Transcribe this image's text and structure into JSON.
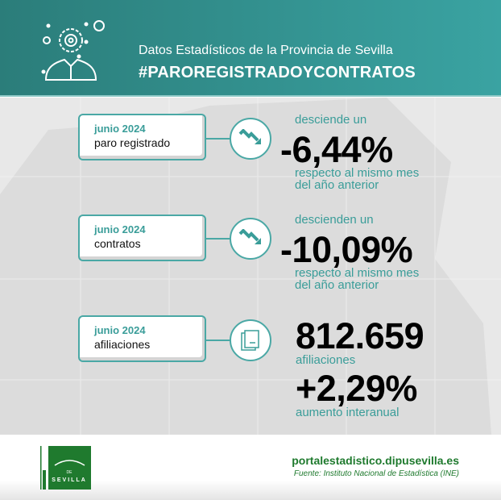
{
  "header": {
    "subtitle": "Datos Estadísticos de la Provincia de Sevilla",
    "title": "#PAROREGISTRADOYCONTRATOS",
    "icon": "person-gear-icon"
  },
  "colors": {
    "teal": "#3a9d99",
    "header_start": "#2b7d7a",
    "header_end": "#3aa3a2",
    "footer_green": "#1f7a2e"
  },
  "cards": [
    {
      "date": "junio 2024",
      "label": "paro registrado",
      "icon": "trend-down-icon",
      "pre": "desciende un",
      "value": "-6,44%",
      "post1": "respecto al mismo mes",
      "post2": "del año anterior"
    },
    {
      "date": "junio 2024",
      "label": "contratos",
      "icon": "trend-down-icon",
      "pre": "descienden un",
      "value": "-10,09%",
      "post1": "respecto al mismo mes",
      "post2": "del año anterior"
    },
    {
      "date": "junio 2024",
      "label": "afiliaciones",
      "icon": "documents-icon",
      "value": "812.659",
      "post1": "afiliaciones",
      "value2": "+2,29%",
      "post2": "aumento interanual"
    }
  ],
  "footer": {
    "url": "portalestadistico.dipusevilla.es",
    "source": "Fuente: Instituto Nacional de Estadística (INE)",
    "logo_text": "DIPUTACION DE SEVILLA",
    "logo_side": "PRODETUR"
  }
}
